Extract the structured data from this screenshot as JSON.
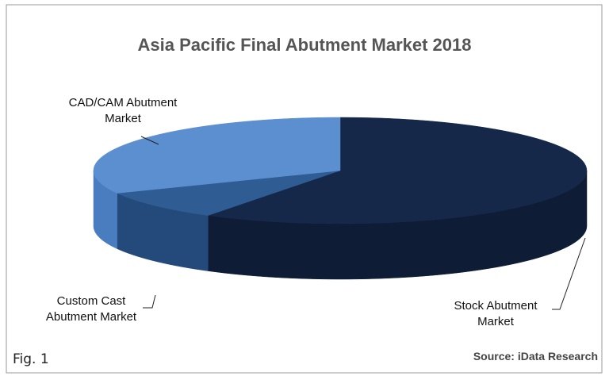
{
  "chart_data": {
    "type": "pie3d",
    "title": "Asia Pacific Final Abutment Market 2018",
    "categories": [
      "Stock Abutment Market",
      "Custom Cast Abutment Market",
      "CAD/CAM Abutment Market"
    ],
    "values": [
      59,
      9,
      32
    ],
    "colors": [
      "#16284a",
      "#2f5d93",
      "#5b8fd0"
    ],
    "side_colors": [
      "#0e1c36",
      "#234a7a",
      "#4a7dbf"
    ],
    "source": "Source: iData Research"
  },
  "caption": "Fig. 1"
}
